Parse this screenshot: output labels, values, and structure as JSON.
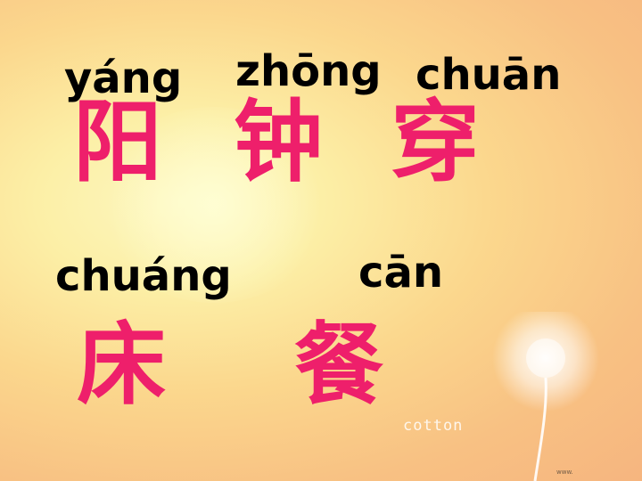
{
  "slide": {
    "background_colors": [
      "#fdf7c0",
      "#fbd78d",
      "#f6b57f"
    ],
    "hanzi_color": "#ee1f6b",
    "pinyin_color": "#000000",
    "row1": [
      {
        "pinyin": "yáng",
        "hanzi": "阳"
      },
      {
        "pinyin": "zhōng",
        "hanzi": "钟"
      },
      {
        "pinyin": "chuān",
        "hanzi": "穿"
      }
    ],
    "row2": [
      {
        "pinyin": "chuáng",
        "hanzi": "床"
      },
      {
        "pinyin": "cān",
        "hanzi": "餐"
      }
    ],
    "decoration": {
      "caption": "cotton",
      "icon": "dandelion-icon",
      "watermark": "www."
    }
  }
}
